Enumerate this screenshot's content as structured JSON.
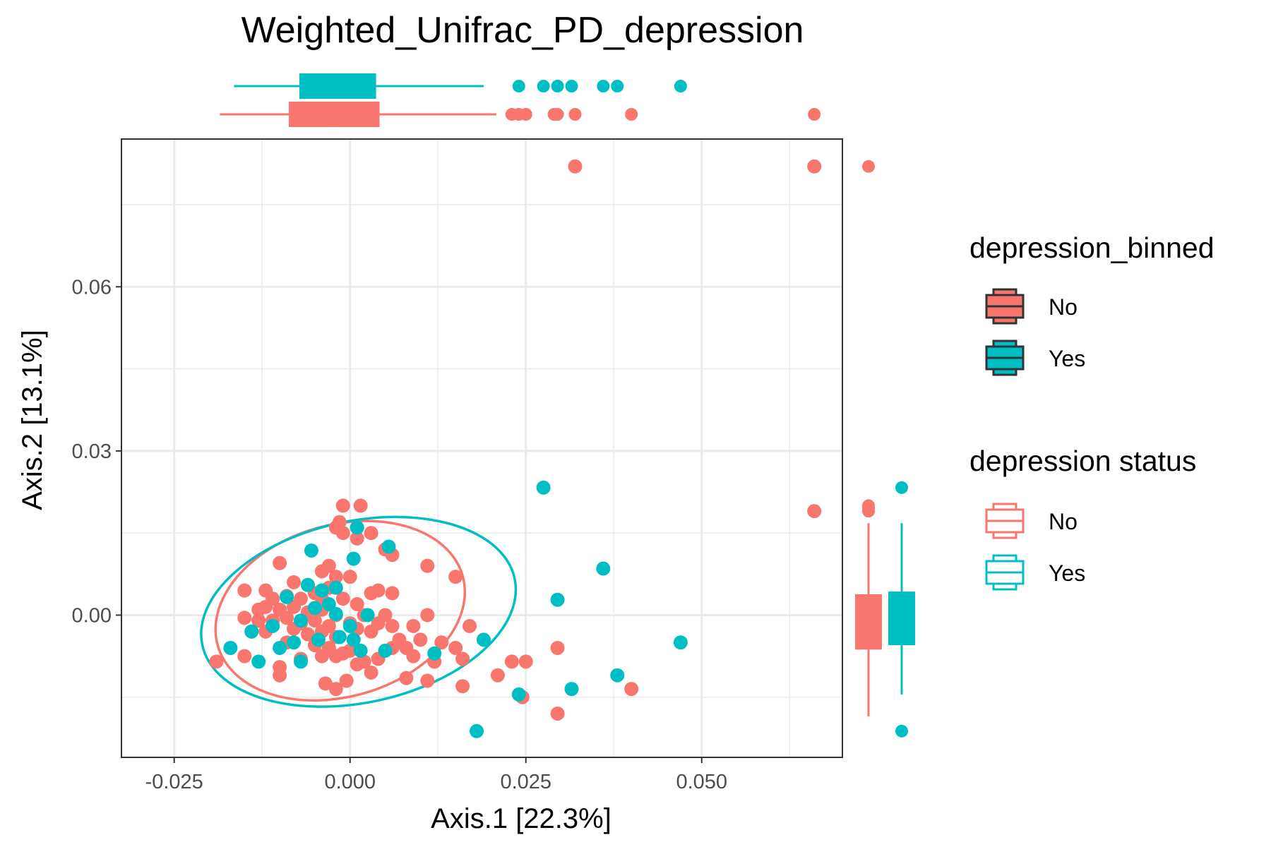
{
  "chart_data": {
    "type": "scatter",
    "title": "Weighted_Unifrac_PD_depression",
    "xlabel": "Axis.1   [22.3%]",
    "ylabel": "Axis.2   [13.1%]",
    "xlim": [
      -0.0325,
      0.07
    ],
    "ylim": [
      -0.026,
      0.087
    ],
    "x_ticks": [
      {
        "value": -0.025,
        "label": "-0.025"
      },
      {
        "value": 0.0,
        "label": "0.000"
      },
      {
        "value": 0.025,
        "label": "0.025"
      },
      {
        "value": 0.05,
        "label": "0.050"
      }
    ],
    "y_ticks": [
      {
        "value": 0.0,
        "label": "0.00"
      },
      {
        "value": 0.03,
        "label": "0.03"
      },
      {
        "value": 0.06,
        "label": "0.06"
      }
    ],
    "grid": true,
    "legends": [
      {
        "title": "depression_binned",
        "position": "right",
        "style": "filled-box",
        "entries": [
          {
            "label": "No",
            "color": "#F8766D"
          },
          {
            "label": "Yes",
            "color": "#00BFC4"
          }
        ]
      },
      {
        "title": "depression status",
        "position": "right",
        "style": "outline-box",
        "entries": [
          {
            "label": "No",
            "color": "#F8766D"
          },
          {
            "label": "Yes",
            "color": "#00BFC4"
          }
        ]
      }
    ],
    "series": [
      {
        "name": "No",
        "color": "#F8766D",
        "points": [
          [
            0.032,
            0.082
          ],
          [
            0.066,
            0.082
          ],
          [
            0.066,
            0.019
          ],
          [
            -0.001,
            0.02
          ],
          [
            0.0015,
            0.02
          ],
          [
            -0.0015,
            0.017
          ],
          [
            0.001,
            0.016
          ],
          [
            -0.002,
            0.016
          ],
          [
            -0.001,
            0.015
          ],
          [
            0.001,
            0.014
          ],
          [
            0.003,
            0.015
          ],
          [
            0.005,
            0.012
          ],
          [
            0.006,
            0.011
          ],
          [
            -0.01,
            0.0095
          ],
          [
            0.011,
            0.009
          ],
          [
            -0.004,
            0.008
          ],
          [
            -0.003,
            0.009
          ],
          [
            -0.002,
            0.007
          ],
          [
            0.0,
            0.007
          ],
          [
            0.015,
            0.007
          ],
          [
            -0.008,
            0.006
          ],
          [
            -0.006,
            0.0055
          ],
          [
            -0.003,
            0.005
          ],
          [
            0.003,
            0.004
          ],
          [
            0.004,
            0.0045
          ],
          [
            0.006,
            0.004
          ],
          [
            -0.015,
            0.0045
          ],
          [
            -0.012,
            0.0045
          ],
          [
            -0.011,
            0.003
          ],
          [
            -0.009,
            0.0035
          ],
          [
            -0.007,
            0.003
          ],
          [
            -0.005,
            0.004
          ],
          [
            -0.004,
            0.003
          ],
          [
            -0.001,
            0.003
          ],
          [
            0.001,
            0.002
          ],
          [
            -0.013,
            0.001
          ],
          [
            -0.012,
            0.0015
          ],
          [
            -0.01,
            0.001
          ],
          [
            -0.008,
            0.0015
          ],
          [
            -0.006,
            0.0005
          ],
          [
            -0.004,
            0.001
          ],
          [
            -0.002,
            0.0
          ],
          [
            0.002,
            0.0
          ],
          [
            0.005,
            0.0
          ],
          [
            0.011,
            0.0
          ],
          [
            -0.015,
            -0.0005
          ],
          [
            -0.013,
            -0.001
          ],
          [
            -0.011,
            -0.001
          ],
          [
            -0.009,
            -0.0005
          ],
          [
            -0.007,
            -0.0015
          ],
          [
            -0.005,
            -0.001
          ],
          [
            -0.003,
            -0.002
          ],
          [
            0.0,
            -0.0015
          ],
          [
            0.004,
            -0.0015
          ],
          [
            0.006,
            -0.002
          ],
          [
            0.009,
            -0.002
          ],
          [
            0.017,
            -0.002
          ],
          [
            -0.014,
            -0.003
          ],
          [
            -0.012,
            -0.003
          ],
          [
            -0.008,
            -0.0025
          ],
          [
            -0.006,
            -0.0035
          ],
          [
            -0.004,
            -0.003
          ],
          [
            -0.002,
            -0.004
          ],
          [
            0.001,
            -0.0025
          ],
          [
            0.003,
            -0.003
          ],
          [
            0.007,
            -0.0045
          ],
          [
            0.008,
            -0.006
          ],
          [
            0.01,
            -0.0045
          ],
          [
            0.013,
            -0.005
          ],
          [
            0.015,
            -0.006
          ],
          [
            -0.009,
            -0.005
          ],
          [
            -0.005,
            -0.0055
          ],
          [
            -0.003,
            -0.006
          ],
          [
            -0.001,
            -0.007
          ],
          [
            0.0,
            -0.0065
          ],
          [
            0.002,
            -0.0085
          ],
          [
            0.004,
            -0.008
          ],
          [
            0.006,
            -0.006
          ],
          [
            0.009,
            -0.0075
          ],
          [
            0.012,
            -0.0085
          ],
          [
            0.016,
            -0.008
          ],
          [
            -0.019,
            -0.0085
          ],
          [
            -0.015,
            -0.0075
          ],
          [
            -0.01,
            -0.0095
          ],
          [
            -0.007,
            -0.008
          ],
          [
            -0.004,
            -0.0075
          ],
          [
            -0.002,
            -0.0075
          ],
          [
            0.001,
            -0.009
          ],
          [
            0.003,
            -0.0105
          ],
          [
            0.008,
            -0.0115
          ],
          [
            0.011,
            -0.012
          ],
          [
            -0.01,
            -0.011
          ],
          [
            -0.0035,
            -0.0125
          ],
          [
            -0.0005,
            -0.012
          ],
          [
            -0.002,
            -0.0135
          ],
          [
            0.016,
            -0.013
          ],
          [
            0.021,
            -0.011
          ],
          [
            0.023,
            -0.0085
          ],
          [
            0.025,
            -0.0085
          ],
          [
            0.0295,
            -0.006
          ],
          [
            0.0245,
            -0.015
          ],
          [
            0.0295,
            -0.018
          ],
          [
            0.04,
            -0.0135
          ]
        ]
      },
      {
        "name": "Yes",
        "color": "#00BFC4",
        "points": [
          [
            0.0275,
            0.0233
          ],
          [
            0.036,
            0.0085
          ],
          [
            0.0295,
            0.0028
          ],
          [
            0.047,
            -0.005
          ],
          [
            -0.0055,
            0.0118
          ],
          [
            0.0005,
            0.0103
          ],
          [
            0.0055,
            0.0125
          ],
          [
            0.001,
            0.016
          ],
          [
            -0.006,
            0.0055
          ],
          [
            -0.004,
            0.0045
          ],
          [
            -0.002,
            0.005
          ],
          [
            -0.009,
            0.0033
          ],
          [
            -0.003,
            0.002
          ],
          [
            -0.005,
            0.0013
          ],
          [
            0.0025,
            0.0
          ],
          [
            -0.002,
            0.0002
          ],
          [
            -0.014,
            -0.003
          ],
          [
            -0.011,
            -0.002
          ],
          [
            -0.007,
            -0.001
          ],
          [
            0.0,
            -0.002
          ],
          [
            -0.0045,
            -0.0045
          ],
          [
            -0.008,
            -0.005
          ],
          [
            -0.0015,
            -0.004
          ],
          [
            0.0005,
            -0.0045
          ],
          [
            -0.017,
            -0.006
          ],
          [
            -0.013,
            -0.0085
          ],
          [
            -0.01,
            -0.006
          ],
          [
            -0.007,
            -0.0085
          ],
          [
            0.0015,
            -0.0065
          ],
          [
            0.005,
            -0.0065
          ],
          [
            0.012,
            -0.007
          ],
          [
            0.019,
            -0.0045
          ],
          [
            0.024,
            -0.0145
          ],
          [
            0.018,
            -0.0212
          ],
          [
            0.0315,
            -0.0135
          ],
          [
            0.038,
            -0.011
          ]
        ]
      }
    ],
    "ellipses": [
      {
        "name": "No",
        "color": "#F8766D",
        "cx": -0.0014,
        "cy": 0.0008,
        "rx": 0.0181,
        "ry": 0.0157,
        "angle_deg": 16
      },
      {
        "name": "Yes",
        "color": "#00BFC4",
        "cx": 0.0012,
        "cy": 0.0006,
        "rx": 0.0227,
        "ry": 0.0166,
        "angle_deg": 12
      }
    ],
    "marginal_boxplots": {
      "x": [
        {
          "name": "No",
          "color": "#F8766D",
          "whisker_low": -0.0185,
          "q1": -0.0087,
          "median": -0.0025,
          "q3": 0.0042,
          "whisker_high": 0.0208,
          "outliers": [
            0.023,
            0.024,
            0.025,
            0.029,
            0.0295,
            0.032,
            0.04,
            0.066
          ]
        },
        {
          "name": "Yes",
          "color": "#00BFC4",
          "whisker_low": -0.0165,
          "q1": -0.0072,
          "median": -0.0035,
          "q3": 0.0037,
          "whisker_high": 0.019,
          "outliers": [
            0.024,
            0.0275,
            0.0295,
            0.0315,
            0.036,
            0.038,
            0.047
          ]
        }
      ],
      "y": [
        {
          "name": "No",
          "color": "#F8766D",
          "whisker_low": -0.0185,
          "q1": -0.0063,
          "median": -0.0005,
          "q3": 0.0038,
          "whisker_high": 0.0168,
          "outliers": [
            0.019,
            0.0195,
            0.02,
            0.082
          ]
        },
        {
          "name": "Yes",
          "color": "#00BFC4",
          "whisker_low": -0.0145,
          "q1": -0.0055,
          "median": -0.0005,
          "q3": 0.0043,
          "whisker_high": 0.0168,
          "outliers": [
            0.0233,
            -0.0212
          ]
        }
      ]
    }
  }
}
